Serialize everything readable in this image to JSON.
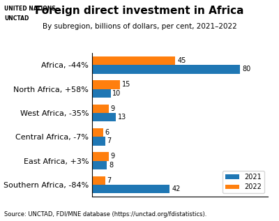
{
  "chart_data": {
    "type": "bar",
    "orientation": "horizontal",
    "title": "Foreign direct investment in Africa",
    "subtitle": "By subregion, billions of dollars, per cent, 2021–2022",
    "source": "Source: UNCTAD, FDI/MNE database (https://unctad.org/fdistatistics).",
    "annotations": [
      "UNITED NATIONS",
      "UNCTAD"
    ],
    "categories": [
      "Africa, -44%",
      "North Africa, +58%",
      "West Africa, -35%",
      "Central Africa, -7%",
      "East Africa, +3%",
      "Southern Africa, -84%"
    ],
    "series": [
      {
        "name": "2021",
        "values": [
          80,
          10,
          13,
          7,
          8,
          42
        ]
      },
      {
        "name": "2022",
        "values": [
          45,
          15,
          9,
          6,
          9,
          7
        ]
      }
    ],
    "xlim": [
      0,
      95
    ],
    "data_labels": true,
    "tick_labels": "y",
    "legend": "lower right"
  }
}
